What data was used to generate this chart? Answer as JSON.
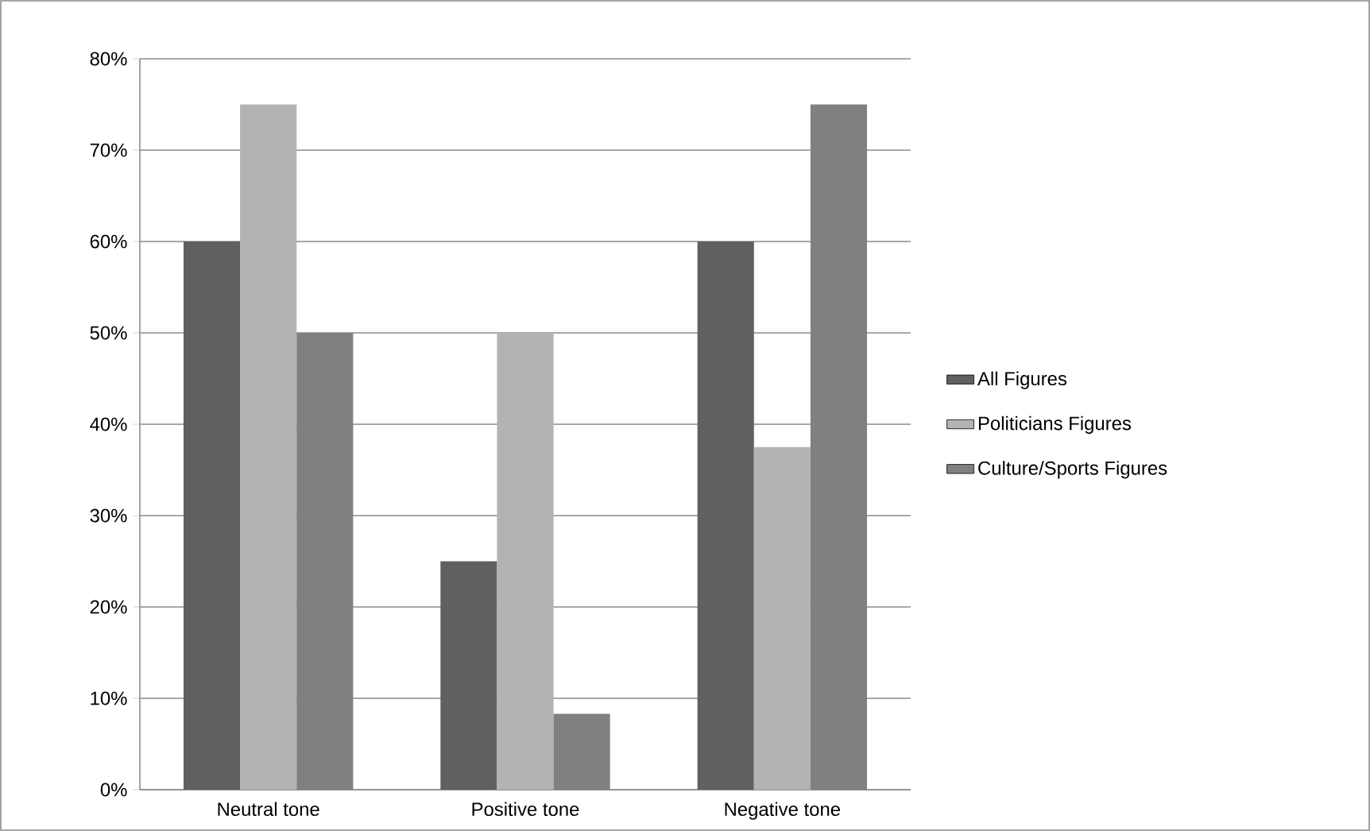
{
  "chart_data": {
    "type": "bar",
    "categories": [
      "Neutral tone",
      "Positive tone",
      "Negative tone"
    ],
    "series": [
      {
        "name": "All Figures",
        "color": "#606060",
        "values": [
          60,
          25,
          60
        ]
      },
      {
        "name": "Politicians Figures",
        "color": "#b3b3b3",
        "values": [
          75,
          50,
          37.5
        ]
      },
      {
        "name": "Culture/Sports Figures",
        "color": "#808080",
        "values": [
          50,
          8.3,
          75
        ]
      }
    ],
    "ylim": [
      0,
      80
    ],
    "yticks": [
      {
        "value": 0,
        "label": "0%"
      },
      {
        "value": 10,
        "label": "10%"
      },
      {
        "value": 20,
        "label": "20%"
      },
      {
        "value": 30,
        "label": "30%"
      },
      {
        "value": 40,
        "label": "40%"
      },
      {
        "value": 50,
        "label": "50%"
      },
      {
        "value": 60,
        "label": "60%"
      },
      {
        "value": 70,
        "label": "70%"
      },
      {
        "value": 80,
        "label": "80%"
      }
    ],
    "grid": "y",
    "legend": "right"
  }
}
